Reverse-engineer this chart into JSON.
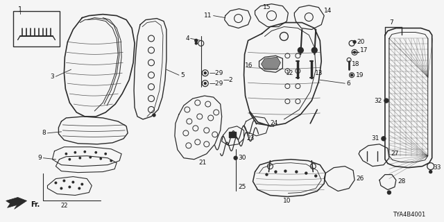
{
  "diagram_id": "TYA4B4001",
  "background_color": "#f5f5f5",
  "line_color": "#2a2a2a",
  "text_color": "#111111",
  "fig_w": 6.4,
  "fig_h": 3.2,
  "dpi": 100
}
